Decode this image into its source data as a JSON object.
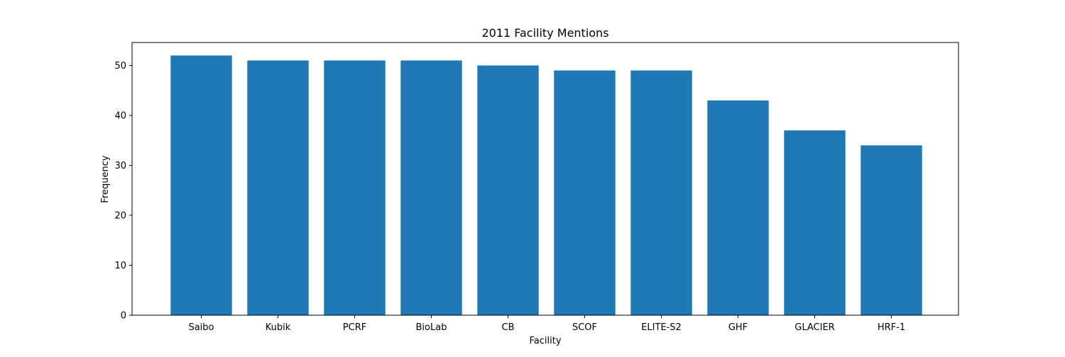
{
  "chart_data": {
    "type": "bar",
    "title": "2011 Facility Mentions",
    "xlabel": "Facility",
    "ylabel": "Frequency",
    "categories": [
      "Saibo",
      "Kubik",
      "PCRF",
      "BioLab",
      "CB",
      "SCOF",
      "ELITE-S2",
      "GHF",
      "GLACIER",
      "HRF-1"
    ],
    "values": [
      52,
      51,
      51,
      51,
      50,
      49,
      49,
      43,
      37,
      34
    ],
    "ylim": [
      0,
      54.6
    ],
    "yticks": [
      0,
      10,
      20,
      30,
      40,
      50
    ],
    "grid": false,
    "colors": {
      "bar": "#1f77b4",
      "axis": "#000000",
      "background": "#ffffff"
    }
  }
}
